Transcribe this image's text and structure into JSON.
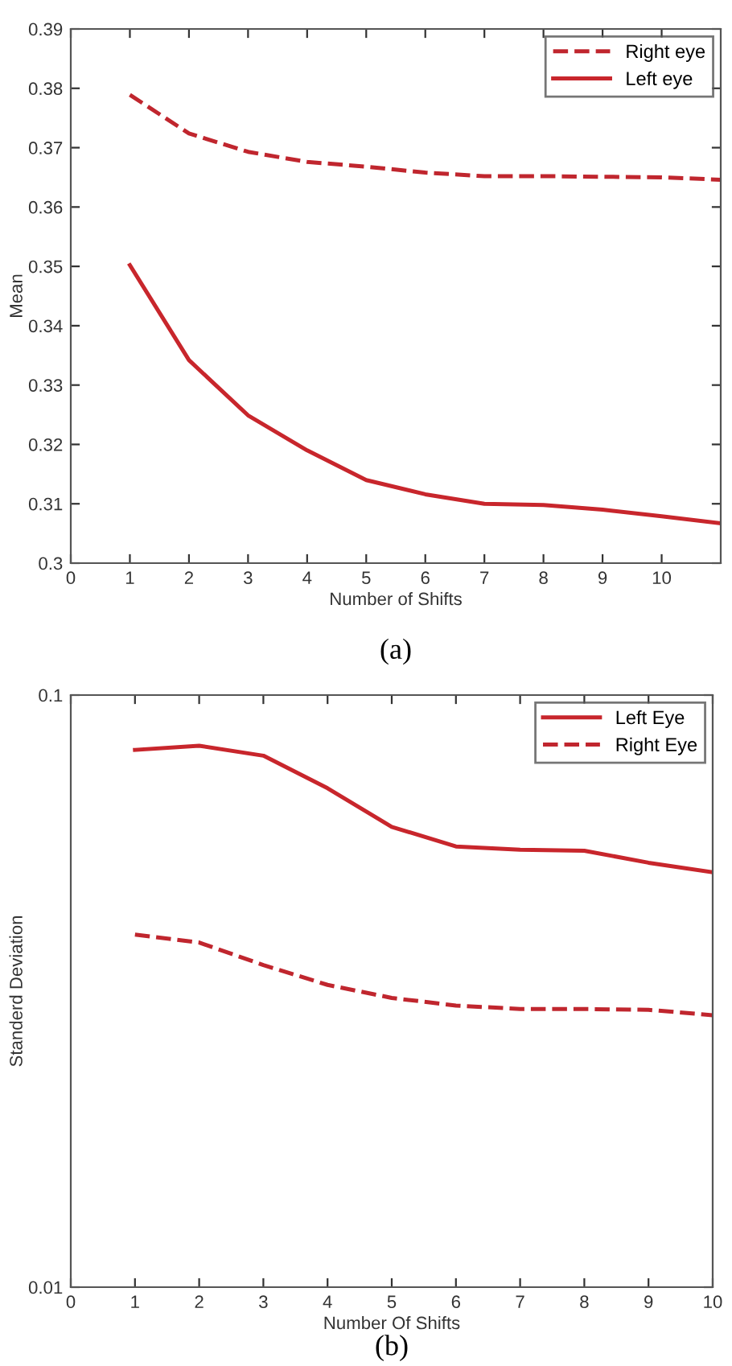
{
  "chart_data": [
    {
      "type": "line",
      "xlabel": "Number of Shifts",
      "ylabel": "Mean",
      "annotations": [
        "(a)"
      ],
      "x": [
        1,
        2,
        3,
        4,
        5,
        6,
        7,
        8,
        9,
        10,
        11
      ],
      "xlim": [
        0,
        11
      ],
      "xticks": [
        0,
        1,
        2,
        3,
        4,
        5,
        6,
        7,
        8,
        9,
        10
      ],
      "ylim": [
        0.3,
        0.39
      ],
      "yticks": [
        0.3,
        0.31,
        0.32,
        0.33,
        0.34,
        0.35,
        0.36,
        0.37,
        0.38,
        0.39
      ],
      "grid": false,
      "legend": "top right",
      "series": [
        {
          "name": "Right eye",
          "color": "#c0262e",
          "line_style": "dashed",
          "values": [
            0.3789,
            0.3724,
            0.3693,
            0.3676,
            0.3668,
            0.3658,
            0.3652,
            0.3652,
            0.3651,
            0.365,
            0.3646
          ]
        },
        {
          "name": "Left eye",
          "color": "#c8262c",
          "line_style": "solid",
          "values": [
            0.3502,
            0.3342,
            0.3249,
            0.319,
            0.314,
            0.3116,
            0.31,
            0.3098,
            0.309,
            0.3079,
            0.3067
          ]
        }
      ]
    },
    {
      "type": "line",
      "xlabel": "Number Of Shifts",
      "ylabel": "Standerd Deviation",
      "annotations": [
        "(b)"
      ],
      "x": [
        1,
        2,
        3,
        4,
        5,
        6,
        7,
        8,
        9,
        10
      ],
      "xlim": [
        0,
        10
      ],
      "xticks": [
        0,
        1,
        2,
        3,
        4,
        5,
        6,
        7,
        8,
        9,
        10
      ],
      "log": "y",
      "ylim": [
        0.01,
        0.1
      ],
      "yticks": [
        0.01,
        0.1
      ],
      "grid": false,
      "legend": "top right",
      "series": [
        {
          "name": "Left Eye",
          "color": "#c8262c",
          "line_style": "solid",
          "values": [
            0.0808,
            0.0821,
            0.079,
            0.0696,
            0.0599,
            0.0555,
            0.0548,
            0.0546,
            0.0521,
            0.0502
          ]
        },
        {
          "name": "Right Eye",
          "color": "#c0262e",
          "line_style": "dashed",
          "values": [
            0.0394,
            0.0382,
            0.035,
            0.0324,
            0.0308,
            0.0299,
            0.0295,
            0.0295,
            0.0294,
            0.0288
          ]
        }
      ]
    }
  ]
}
